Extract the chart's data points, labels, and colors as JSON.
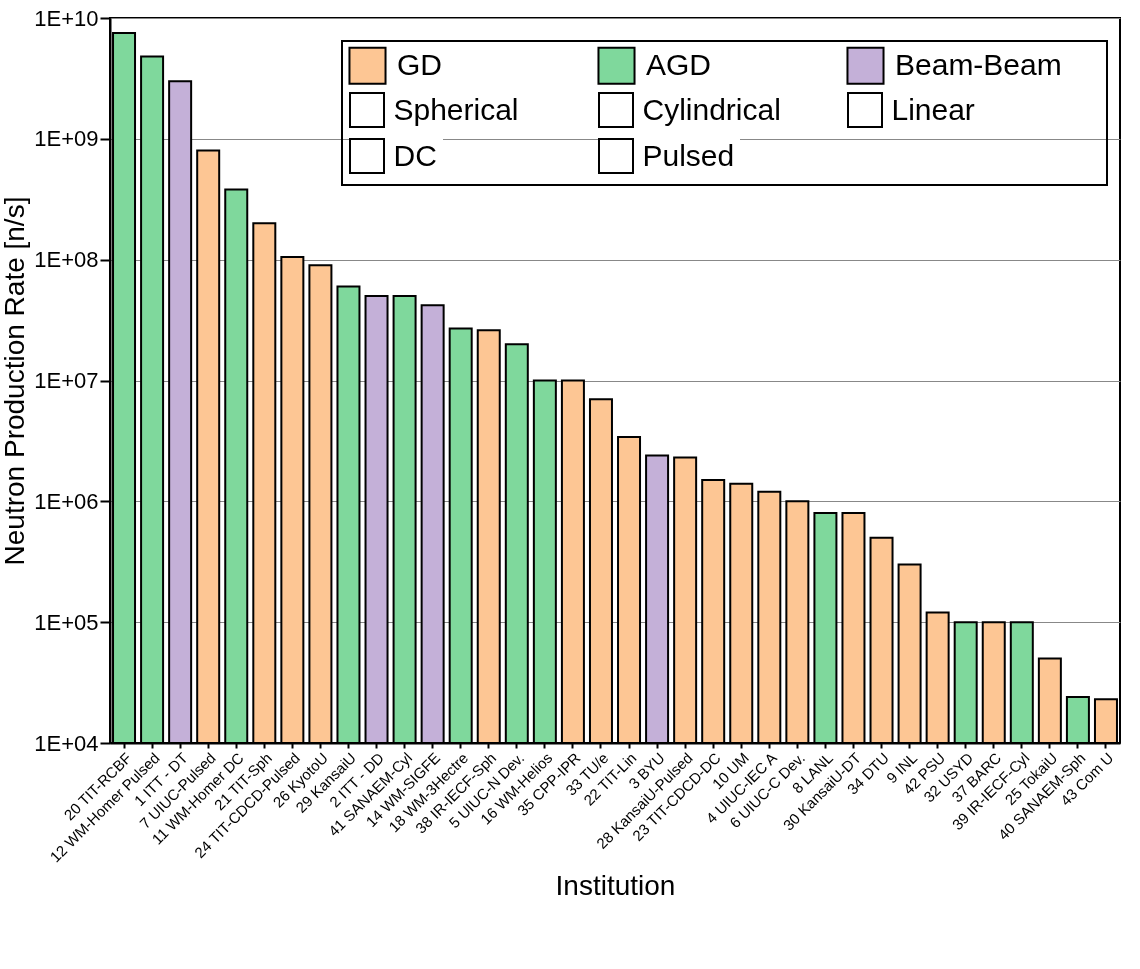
{
  "chart_data": {
    "type": "bar",
    "xlabel": "Institution",
    "ylabel": "Neutron Production Rate [n/s]",
    "log": true,
    "grid": "y",
    "legend": "top right",
    "categories": [
      "20 TIT-RCBF",
      "12 WM-Homer Pulsed",
      "1 ITT - DT",
      "7 UIUC-Pulsed",
      "11 WM-Homer DC",
      "21 TIT-Sph",
      "24 TIT-CDCD-Pulsed",
      "26 KyotoU",
      "29 KansaiU",
      "2 ITT - DD",
      "41 SANAEM-Cyl",
      "14 WM-SIGFE",
      "18 WM-3Hectre",
      "38 IR-IECF-Sph",
      "5 UIUC-N Dev.",
      "16 WM-Helios",
      "35 CPP-IPR",
      "33 TU/e",
      "22 TIT-Lin",
      "3 BYU",
      "28 KansaiU-Pulsed",
      "23 TIT-CDCD-DC",
      "10 UM",
      "4 UIUC-IEC A",
      "6 UIUC-C Dev.",
      "8 LANL",
      "30 KansaiU-DT",
      "34 DTU",
      "9 INL",
      "42 PSU",
      "32 USYD",
      "37 BARC",
      "39 IR-IECF-Cyl",
      "25 TokaiU",
      "40 SANAEM-Sph",
      "43 Com U"
    ],
    "series": [
      {
        "name": "GD",
        "color": "#fdc694",
        "values": [
          null,
          null,
          null,
          800000000.0,
          null,
          200000000.0,
          105000000.0,
          90000000.0,
          null,
          null,
          null,
          null,
          null,
          26000000.0,
          null,
          null,
          10000000.0,
          7000000.0,
          3400000.0,
          null,
          2300000.0,
          1500000.0,
          1400000.0,
          1200000.0,
          1000000.0,
          null,
          800000.0,
          500000.0,
          300000.0,
          120000.0,
          null,
          100000.0,
          null,
          50000.0,
          null,
          23000.0
        ]
      },
      {
        "name": "AGD",
        "color": "#7fd89c",
        "values": [
          7500000000.0,
          4800000000.0,
          null,
          null,
          380000000.0,
          null,
          null,
          null,
          60000000.0,
          null,
          50000000.0,
          null,
          27000000.0,
          null,
          20000000.0,
          10000000.0,
          null,
          null,
          null,
          null,
          null,
          null,
          null,
          null,
          null,
          800000.0,
          null,
          null,
          null,
          null,
          100000.0,
          null,
          100000.0,
          null,
          24000.0,
          null
        ]
      },
      {
        "name": "Beam-Beam",
        "color": "#c4b0d8",
        "values": [
          null,
          null,
          3000000000.0,
          null,
          null,
          null,
          null,
          null,
          null,
          50000000.0,
          null,
          42000000.0,
          null,
          null,
          null,
          null,
          null,
          null,
          null,
          2400000.0,
          null,
          null,
          null,
          null,
          null,
          null,
          null,
          null,
          null,
          null,
          null,
          null,
          null,
          null,
          null,
          null
        ]
      }
    ],
    "ylim": [
      10000.0,
      10000000000.0
    ],
    "yticks": [
      {
        "value": 10000.0,
        "label": "1E+04"
      },
      {
        "value": 100000.0,
        "label": "1E+05"
      },
      {
        "value": 1000000.0,
        "label": "1E+06"
      },
      {
        "value": 10000000.0,
        "label": "1E+07"
      },
      {
        "value": 100000000.0,
        "label": "1E+08"
      },
      {
        "value": 1000000000.0,
        "label": "1E+09"
      },
      {
        "value": 10000000000.0,
        "label": "1E+10"
      }
    ],
    "annotations": [
      "Spherical",
      "Cylindrical",
      "Linear",
      "DC",
      "Pulsed"
    ]
  }
}
